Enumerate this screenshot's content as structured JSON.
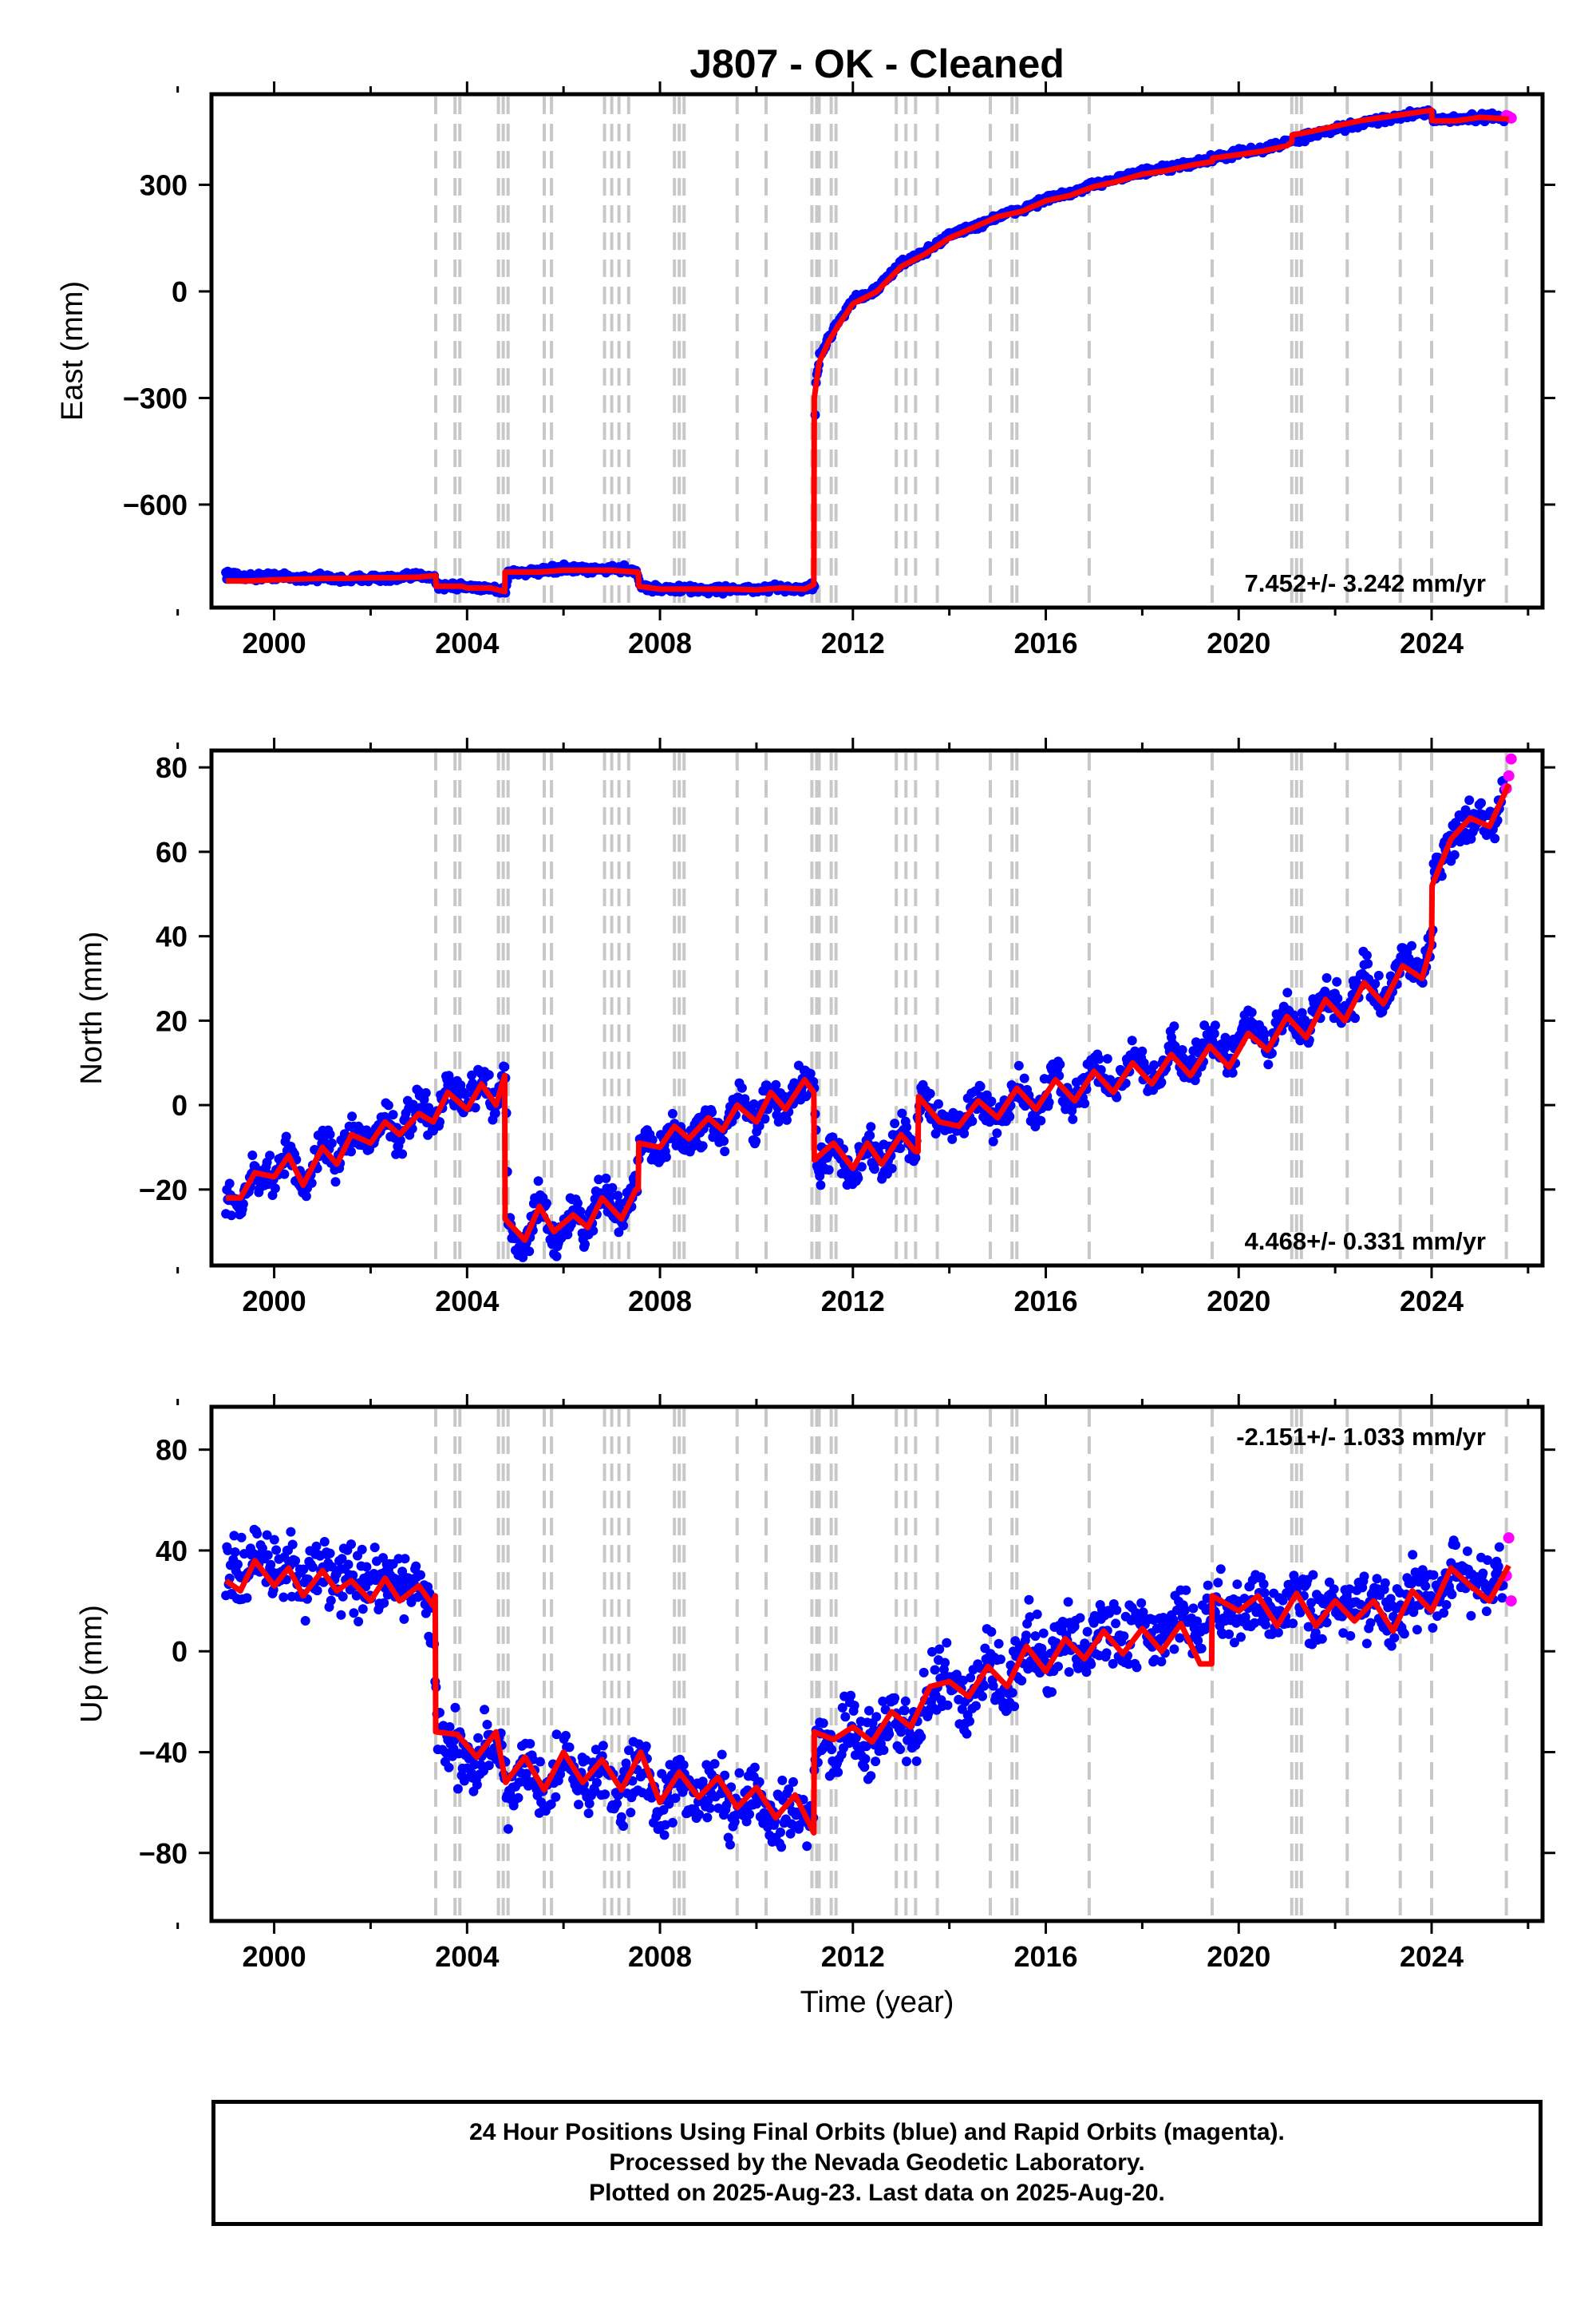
{
  "title": "J807  - OK - Cleaned",
  "xlabel": "Time (year)",
  "x_ticks": [
    2000,
    2004,
    2008,
    2012,
    2016,
    2020,
    2024
  ],
  "x_range": [
    1998.7,
    2026.3
  ],
  "colors": {
    "final_orbits": "#0000ff",
    "rapid_orbits": "#ff00ff",
    "model": "#ff0000",
    "event_lines": "#c8c8c8"
  },
  "event_lines": [
    2003.35,
    2003.75,
    2003.85,
    2004.65,
    2004.75,
    2004.85,
    2005.6,
    2005.75,
    2006.85,
    2007.0,
    2007.15,
    2007.35,
    2008.3,
    2008.4,
    2008.5,
    2009.6,
    2010.2,
    2011.15,
    2011.25,
    2011.3,
    2011.55,
    2011.65,
    2012.9,
    2013.1,
    2013.3,
    2013.75,
    2014.85,
    2015.3,
    2015.4,
    2016.9,
    2019.45,
    2021.1,
    2021.2,
    2021.3,
    2022.25,
    2023.35,
    2024.0,
    2025.55
  ],
  "chart_data": [
    {
      "type": "scatter",
      "ylabel": "East (mm)",
      "y_ticks": [
        300,
        0,
        -300,
        -600
      ],
      "ylim": [
        -890,
        555
      ],
      "rate_annotation": "7.452+/- 3.242 mm/yr",
      "rate_position": "bottom-right",
      "series": [
        {
          "name": "Final Orbits",
          "x": [
            1999.0,
            1999.5,
            2000.0,
            2000.5,
            2001.0,
            2001.5,
            2002.0,
            2002.5,
            2003.0,
            2003.3,
            2003.4,
            2003.9,
            2004.0,
            2004.5,
            2004.8,
            2004.85,
            2005.5,
            2006.0,
            2006.5,
            2007.0,
            2007.5,
            2007.6,
            2008.0,
            2008.5,
            2009.0,
            2009.5,
            2010.0,
            2010.5,
            2011.0,
            2011.2,
            2011.22,
            2011.3,
            2011.5,
            2011.7,
            2012.0,
            2012.5,
            2013.0,
            2013.5,
            2014.0,
            2014.5,
            2015.0,
            2015.5,
            2016.0,
            2016.5,
            2017.0,
            2017.5,
            2018.0,
            2018.5,
            2019.0,
            2019.5,
            2020.0,
            2020.5,
            2021.0,
            2021.5,
            2022.0,
            2022.5,
            2023.0,
            2023.5,
            2024.0,
            2024.05,
            2024.5,
            2025.0,
            2025.5
          ],
          "values": [
            -795,
            -805,
            -800,
            -808,
            -805,
            -812,
            -805,
            -810,
            -800,
            -800,
            -830,
            -830,
            -832,
            -835,
            -845,
            -790,
            -790,
            -780,
            -785,
            -780,
            -785,
            -830,
            -838,
            -838,
            -840,
            -838,
            -840,
            -835,
            -838,
            -825,
            -280,
            -190,
            -130,
            -85,
            -25,
            5,
            80,
            110,
            160,
            180,
            210,
            230,
            260,
            275,
            300,
            320,
            335,
            345,
            360,
            375,
            390,
            400,
            420,
            440,
            455,
            470,
            485,
            495,
            510,
            480,
            485,
            490,
            490
          ]
        },
        {
          "name": "Rapid Orbits",
          "x": [
            2025.55,
            2025.6,
            2025.65
          ],
          "values": [
            495,
            492,
            488
          ]
        }
      ],
      "model": {
        "x": [
          1999.0,
          1999.5,
          2000.0,
          2000.5,
          2001.0,
          2001.5,
          2002.0,
          2002.5,
          2003.0,
          2003.35,
          2003.36,
          2003.9,
          2004.0,
          2004.5,
          2004.78,
          2004.79,
          2005.5,
          2006.0,
          2006.5,
          2007.0,
          2007.5,
          2007.55,
          2007.56,
          2008.0,
          2008.5,
          2009.0,
          2009.5,
          2010.0,
          2010.5,
          2011.0,
          2011.19,
          2011.2,
          2011.3,
          2011.5,
          2011.7,
          2012.0,
          2012.5,
          2013.0,
          2013.5,
          2014.0,
          2014.5,
          2015.0,
          2015.5,
          2016.0,
          2016.5,
          2017.0,
          2017.5,
          2018.0,
          2018.5,
          2019.0,
          2019.45,
          2019.46,
          2020.0,
          2020.5,
          2021.0,
          2021.1,
          2021.11,
          2021.5,
          2022.0,
          2022.5,
          2023.0,
          2023.5,
          2024.0,
          2024.01,
          2024.5,
          2025.0,
          2025.6
        ],
        "values": [
          -815,
          -815,
          -812,
          -810,
          -808,
          -808,
          -806,
          -806,
          -804,
          -800,
          -830,
          -830,
          -835,
          -835,
          -845,
          -790,
          -790,
          -785,
          -785,
          -785,
          -790,
          -790,
          -830,
          -838,
          -838,
          -838,
          -838,
          -840,
          -835,
          -838,
          -825,
          -300,
          -200,
          -140,
          -95,
          -35,
          0,
          70,
          105,
          150,
          180,
          210,
          225,
          255,
          270,
          295,
          310,
          330,
          340,
          355,
          365,
          375,
          385,
          395,
          410,
          420,
          440,
          450,
          465,
          480,
          490,
          500,
          510,
          480,
          480,
          490,
          485
        ]
      }
    },
    {
      "type": "scatter",
      "ylabel": "North (mm)",
      "y_ticks": [
        80,
        60,
        40,
        20,
        0,
        -20
      ],
      "ylim": [
        -38,
        84
      ],
      "rate_annotation": "4.468+/- 0.331 mm/yr",
      "rate_position": "bottom-right",
      "series": [
        {
          "name": "Final Orbits",
          "x": [
            1999.0,
            1999.3,
            1999.6,
            2000.0,
            2000.3,
            2000.6,
            2001.0,
            2001.3,
            2001.6,
            2002.0,
            2002.3,
            2002.6,
            2003.0,
            2003.3,
            2003.6,
            2004.0,
            2004.3,
            2004.6,
            2004.8,
            2004.85,
            2005.2,
            2005.5,
            2005.8,
            2006.2,
            2006.5,
            2006.8,
            2007.2,
            2007.5,
            2007.6,
            2008.0,
            2008.3,
            2008.6,
            2009.0,
            2009.3,
            2009.6,
            2010.0,
            2010.3,
            2010.6,
            2011.0,
            2011.2,
            2011.25,
            2011.6,
            2012.0,
            2012.3,
            2012.6,
            2013.0,
            2013.3,
            2013.4,
            2013.8,
            2014.2,
            2014.6,
            2015.0,
            2015.4,
            2015.8,
            2016.2,
            2016.6,
            2017.0,
            2017.4,
            2017.8,
            2018.2,
            2018.6,
            2019.0,
            2019.4,
            2019.8,
            2020.2,
            2020.6,
            2021.0,
            2021.4,
            2021.8,
            2022.2,
            2022.6,
            2023.0,
            2023.4,
            2023.8,
            2024.0,
            2024.05,
            2024.5,
            2025.0,
            2025.3,
            2025.5
          ],
          "values": [
            -20,
            -25,
            -15,
            -18,
            -10,
            -20,
            -8,
            -15,
            -5,
            -10,
            -2,
            -8,
            0,
            -5,
            5,
            0,
            8,
            -2,
            10,
            -28,
            -35,
            -22,
            -33,
            -25,
            -30,
            -20,
            -28,
            -18,
            -8,
            -12,
            -4,
            -10,
            -2,
            -8,
            2,
            -5,
            4,
            -2,
            7,
            3,
            -15,
            -10,
            -18,
            -8,
            -15,
            -5,
            -12,
            3,
            -3,
            -6,
            2,
            -4,
            5,
            -2,
            8,
            0,
            10,
            3,
            12,
            5,
            15,
            8,
            16,
            10,
            20,
            12,
            24,
            17,
            28,
            20,
            32,
            25,
            35,
            30,
            40,
            55,
            65,
            70,
            65,
            78
          ]
        },
        {
          "name": "Rapid Orbits",
          "x": [
            2025.55,
            2025.6,
            2025.65
          ],
          "values": [
            75,
            78,
            82
          ]
        }
      ],
      "model": {
        "x": [
          1999.0,
          1999.3,
          1999.6,
          2000.0,
          2000.3,
          2000.6,
          2001.0,
          2001.3,
          2001.6,
          2002.0,
          2002.3,
          2002.6,
          2003.0,
          2003.3,
          2003.6,
          2004.0,
          2004.3,
          2004.6,
          2004.78,
          2004.79,
          2005.2,
          2005.5,
          2005.8,
          2006.2,
          2006.5,
          2006.8,
          2007.2,
          2007.5,
          2007.55,
          2007.56,
          2008.0,
          2008.3,
          2008.6,
          2009.0,
          2009.3,
          2009.6,
          2010.0,
          2010.3,
          2010.6,
          2011.0,
          2011.19,
          2011.2,
          2011.6,
          2012.0,
          2012.3,
          2012.6,
          2013.0,
          2013.3,
          2013.35,
          2013.36,
          2013.8,
          2014.2,
          2014.6,
          2015.0,
          2015.4,
          2015.8,
          2016.2,
          2016.6,
          2017.0,
          2017.4,
          2017.8,
          2018.2,
          2018.6,
          2019.0,
          2019.4,
          2019.8,
          2020.2,
          2020.6,
          2021.0,
          2021.4,
          2021.8,
          2022.2,
          2022.6,
          2023.0,
          2023.4,
          2023.8,
          2024.0,
          2024.01,
          2024.4,
          2024.8,
          2025.2,
          2025.6
        ],
        "values": [
          -22,
          -22,
          -16,
          -17,
          -12,
          -19,
          -10,
          -14,
          -7,
          -9,
          -4,
          -7,
          -2,
          -4,
          3,
          -1,
          5,
          0,
          7,
          -27,
          -32,
          -24,
          -30,
          -26,
          -29,
          -22,
          -27,
          -20,
          -20,
          -9,
          -10,
          -5,
          -8,
          -3,
          -6,
          0,
          -4,
          3,
          -1,
          6,
          3,
          -13,
          -9,
          -15,
          -9,
          -14,
          -7,
          -11,
          -11,
          2,
          -4,
          -5,
          1,
          -3,
          4,
          -1,
          6,
          1,
          8,
          3,
          10,
          5,
          12,
          7,
          14,
          9,
          17,
          13,
          21,
          16,
          25,
          20,
          29,
          24,
          33,
          30,
          38,
          52,
          63,
          68,
          66,
          76
        ]
      }
    },
    {
      "type": "scatter",
      "ylabel": "Up (mm)",
      "y_ticks": [
        80,
        40,
        0,
        -40,
        -80
      ],
      "ylim": [
        -107,
        97
      ],
      "rate_annotation": "-2.151+/- 1.033 mm/yr",
      "rate_position": "top-right",
      "series": [
        {
          "name": "Final Orbits",
          "x": [
            1999.0,
            1999.3,
            1999.6,
            2000.0,
            2000.3,
            2000.6,
            2001.0,
            2001.3,
            2001.6,
            2002.0,
            2002.3,
            2002.6,
            2003.0,
            2003.3,
            2003.4,
            2003.8,
            2004.2,
            2004.6,
            2004.8,
            2005.2,
            2005.6,
            2006.0,
            2006.4,
            2006.8,
            2007.2,
            2007.6,
            2008.0,
            2008.4,
            2008.8,
            2009.2,
            2009.6,
            2010.0,
            2010.4,
            2010.8,
            2011.1,
            2011.25,
            2011.6,
            2012.0,
            2012.4,
            2012.8,
            2013.2,
            2013.6,
            2014.0,
            2014.4,
            2014.8,
            2015.2,
            2015.6,
            2016.0,
            2016.4,
            2016.8,
            2017.2,
            2017.6,
            2018.0,
            2018.4,
            2018.8,
            2019.2,
            2019.5,
            2020.0,
            2020.4,
            2020.8,
            2021.2,
            2021.6,
            2022.0,
            2022.4,
            2022.8,
            2023.2,
            2023.6,
            2024.0,
            2024.4,
            2024.8,
            2025.2,
            2025.5
          ],
          "values": [
            35,
            28,
            40,
            30,
            38,
            25,
            35,
            28,
            30,
            24,
            32,
            22,
            28,
            10,
            -32,
            -38,
            -45,
            -35,
            -55,
            -45,
            -58,
            -42,
            -55,
            -45,
            -58,
            -42,
            -62,
            -50,
            -60,
            -52,
            -65,
            -55,
            -68,
            -58,
            -70,
            -35,
            -40,
            -30,
            -38,
            -25,
            -32,
            -15,
            -10,
            -20,
            -5,
            -15,
            5,
            -8,
            8,
            -2,
            10,
            0,
            12,
            2,
            15,
            5,
            20,
            12,
            22,
            10,
            25,
            12,
            20,
            15,
            22,
            10,
            25,
            18,
            32,
            28,
            25,
            35
          ]
        },
        {
          "name": "Rapid Orbits",
          "x": [
            2025.55,
            2025.6,
            2025.65
          ],
          "values": [
            30,
            45,
            20
          ]
        }
      ],
      "model": {
        "x": [
          1999.0,
          1999.3,
          1999.6,
          2000.0,
          2000.3,
          2000.6,
          2001.0,
          2001.3,
          2001.6,
          2002.0,
          2002.3,
          2002.6,
          2003.0,
          2003.3,
          2003.34,
          2003.35,
          2003.8,
          2004.2,
          2004.6,
          2004.8,
          2005.2,
          2005.6,
          2006.0,
          2006.4,
          2006.8,
          2007.2,
          2007.6,
          2008.0,
          2008.4,
          2008.8,
          2009.2,
          2009.6,
          2010.0,
          2010.4,
          2010.8,
          2011.19,
          2011.2,
          2011.6,
          2012.0,
          2012.4,
          2012.8,
          2013.2,
          2013.6,
          2014.0,
          2014.4,
          2014.8,
          2015.2,
          2015.6,
          2016.0,
          2016.4,
          2016.8,
          2017.2,
          2017.6,
          2018.0,
          2018.4,
          2018.8,
          2019.2,
          2019.44,
          2019.45,
          2020.0,
          2020.4,
          2020.8,
          2021.2,
          2021.6,
          2022.0,
          2022.4,
          2022.8,
          2023.2,
          2023.6,
          2024.0,
          2024.4,
          2024.8,
          2025.2,
          2025.6
        ],
        "values": [
          28,
          24,
          36,
          26,
          33,
          22,
          32,
          24,
          28,
          20,
          29,
          20,
          26,
          18,
          22,
          -32,
          -33,
          -42,
          -32,
          -52,
          -42,
          -55,
          -40,
          -52,
          -43,
          -55,
          -40,
          -60,
          -48,
          -58,
          -50,
          -62,
          -54,
          -66,
          -57,
          -72,
          -32,
          -35,
          -30,
          -36,
          -24,
          -30,
          -14,
          -12,
          -18,
          -6,
          -14,
          2,
          -8,
          5,
          -3,
          8,
          -1,
          9,
          0,
          11,
          -5,
          -5,
          22,
          16,
          22,
          10,
          23,
          10,
          20,
          12,
          20,
          8,
          24,
          16,
          33,
          26,
          20,
          34
        ]
      }
    }
  ],
  "footer": {
    "line1": "24 Hour Positions Using Final Orbits (blue) and Rapid Orbits (magenta).",
    "line2": "Processed by the Nevada Geodetic Laboratory.",
    "line3": "Plotted on 2025-Aug-23. Last data on 2025-Aug-20."
  }
}
